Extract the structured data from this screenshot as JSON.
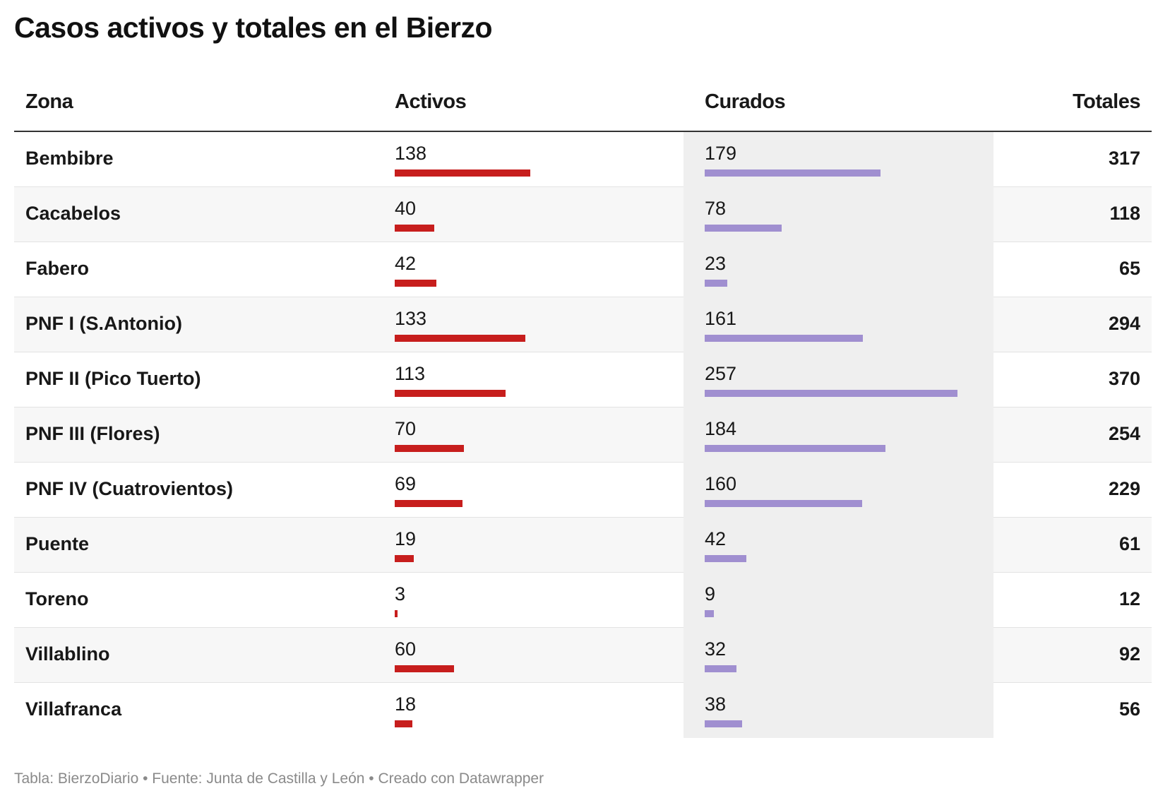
{
  "title": "Casos activos y totales en el Bierzo",
  "columns": {
    "zona": "Zona",
    "activos": "Activos",
    "curados": "Curados",
    "totales": "Totales"
  },
  "colors": {
    "activos_bar": "#c71e1d",
    "curados_bar": "#a08fd0",
    "curados_column_bg": "#efefef"
  },
  "rows": [
    {
      "zona": "Bembibre",
      "activos": "138",
      "curados": "179",
      "totales": "317"
    },
    {
      "zona": "Cacabelos",
      "activos": "40",
      "curados": "78",
      "totales": "118"
    },
    {
      "zona": "Fabero",
      "activos": "42",
      "curados": "23",
      "totales": "65"
    },
    {
      "zona": "PNF I (S.Antonio)",
      "activos": "133",
      "curados": "161",
      "totales": "294"
    },
    {
      "zona": "PNF II (Pico Tuerto)",
      "activos": "113",
      "curados": "257",
      "totales": "370"
    },
    {
      "zona": "PNF III (Flores)",
      "activos": "70",
      "curados": "184",
      "totales": "254"
    },
    {
      "zona": "PNF IV (Cuatrovientos)",
      "activos": "69",
      "curados": "160",
      "totales": "229"
    },
    {
      "zona": "Puente",
      "activos": "19",
      "curados": "42",
      "totales": "61"
    },
    {
      "zona": "Toreno",
      "activos": "3",
      "curados": "9",
      "totales": "12"
    },
    {
      "zona": "Villablino",
      "activos": "60",
      "curados": "32",
      "totales": "92"
    },
    {
      "zona": "Villafranca",
      "activos": "18",
      "curados": "38",
      "totales": "56"
    }
  ],
  "footer": "Tabla: BierzoDiario • Fuente: Junta de Castilla y León • Creado con Datawrapper",
  "chart_data": {
    "type": "table",
    "title": "Casos activos y totales en el Bierzo",
    "columns": [
      "Zona",
      "Activos",
      "Curados",
      "Totales"
    ],
    "categories": [
      "Bembibre",
      "Cacabelos",
      "Fabero",
      "PNF I (S.Antonio)",
      "PNF II (Pico Tuerto)",
      "PNF III (Flores)",
      "PNF IV (Cuatrovientos)",
      "Puente",
      "Toreno",
      "Villablino",
      "Villafranca"
    ],
    "series": [
      {
        "name": "Activos",
        "values": [
          138,
          40,
          42,
          133,
          113,
          70,
          69,
          19,
          3,
          60,
          18
        ]
      },
      {
        "name": "Curados",
        "values": [
          179,
          78,
          23,
          161,
          257,
          184,
          160,
          42,
          9,
          32,
          38
        ]
      },
      {
        "name": "Totales",
        "values": [
          317,
          118,
          65,
          294,
          370,
          254,
          229,
          61,
          12,
          92,
          56
        ]
      }
    ]
  }
}
